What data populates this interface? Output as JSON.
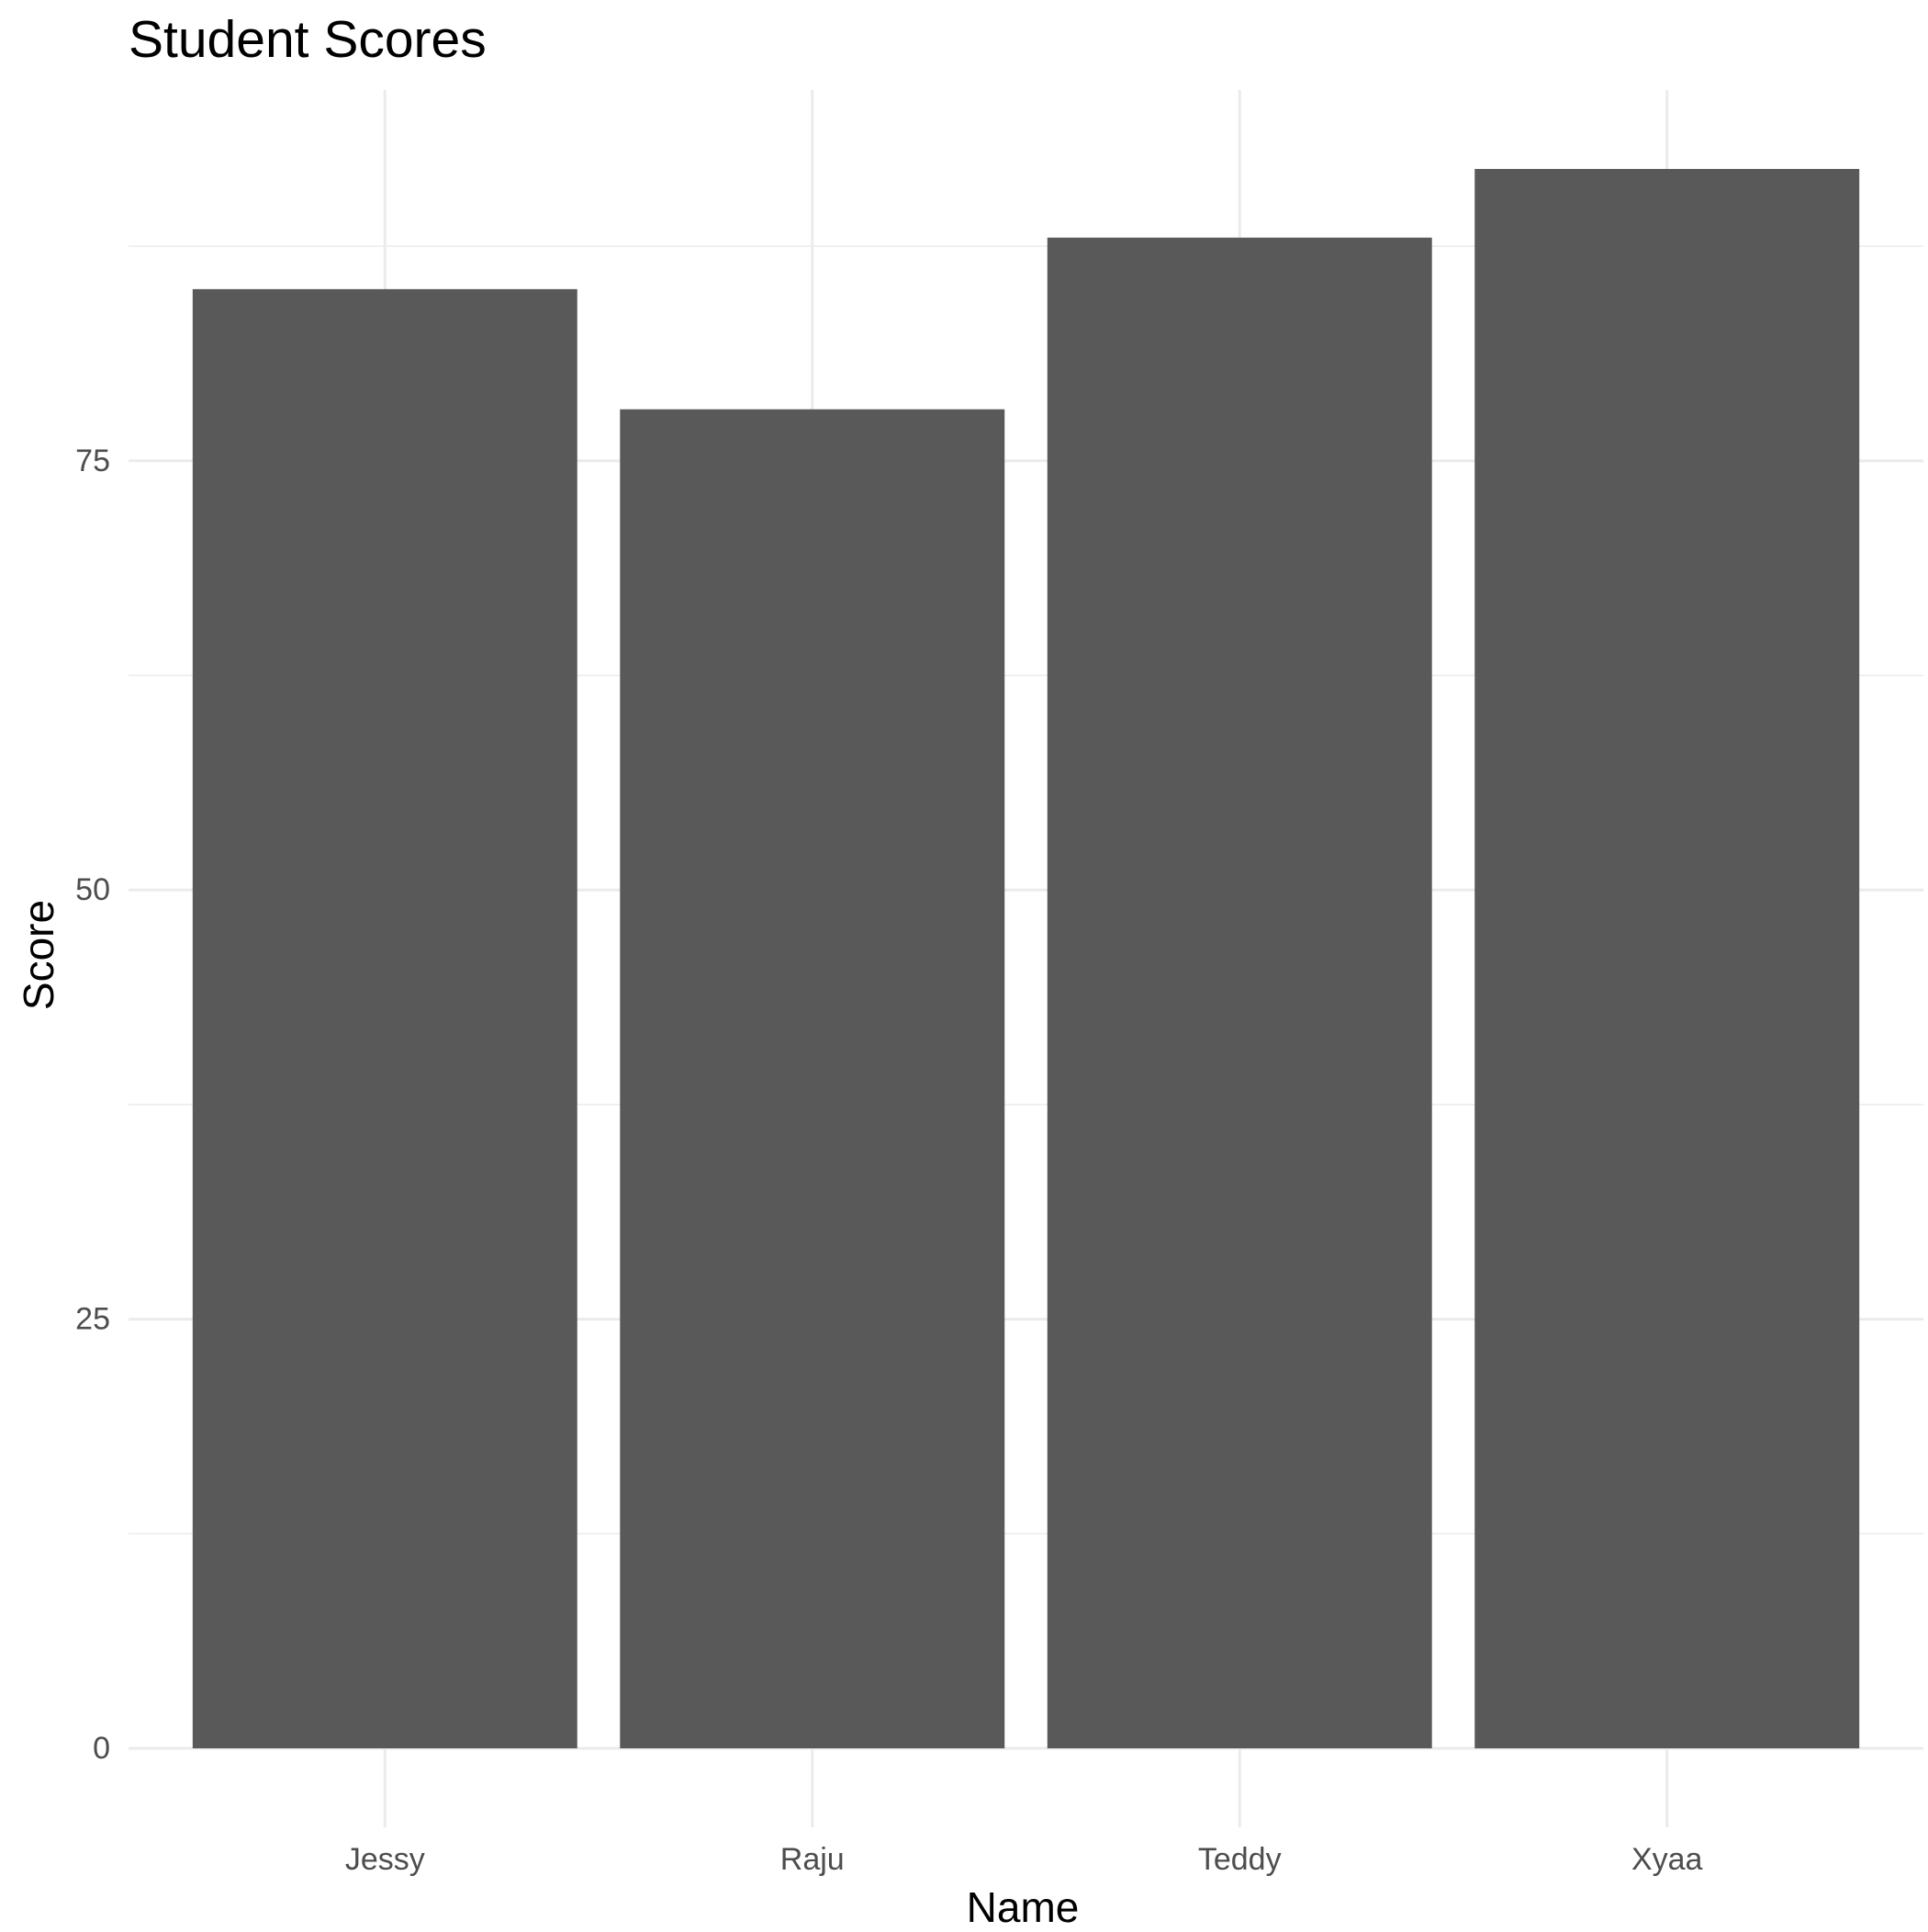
{
  "chart_data": {
    "type": "bar",
    "title": "Student Scores",
    "xlabel": "Name",
    "ylabel": "Score",
    "categories": [
      "Jessy",
      "Raju",
      "Teddy",
      "Xyaa"
    ],
    "values": [
      85,
      78,
      88,
      92
    ],
    "ylim": [
      -4.6,
      96.6
    ],
    "yticks": [
      0,
      25,
      50,
      75
    ],
    "grid": true,
    "legend": "none",
    "colors": {
      "bar": "#595959",
      "grid": "#ebebeb",
      "tick_label": "#4d4d4d",
      "text": "#000000"
    }
  }
}
